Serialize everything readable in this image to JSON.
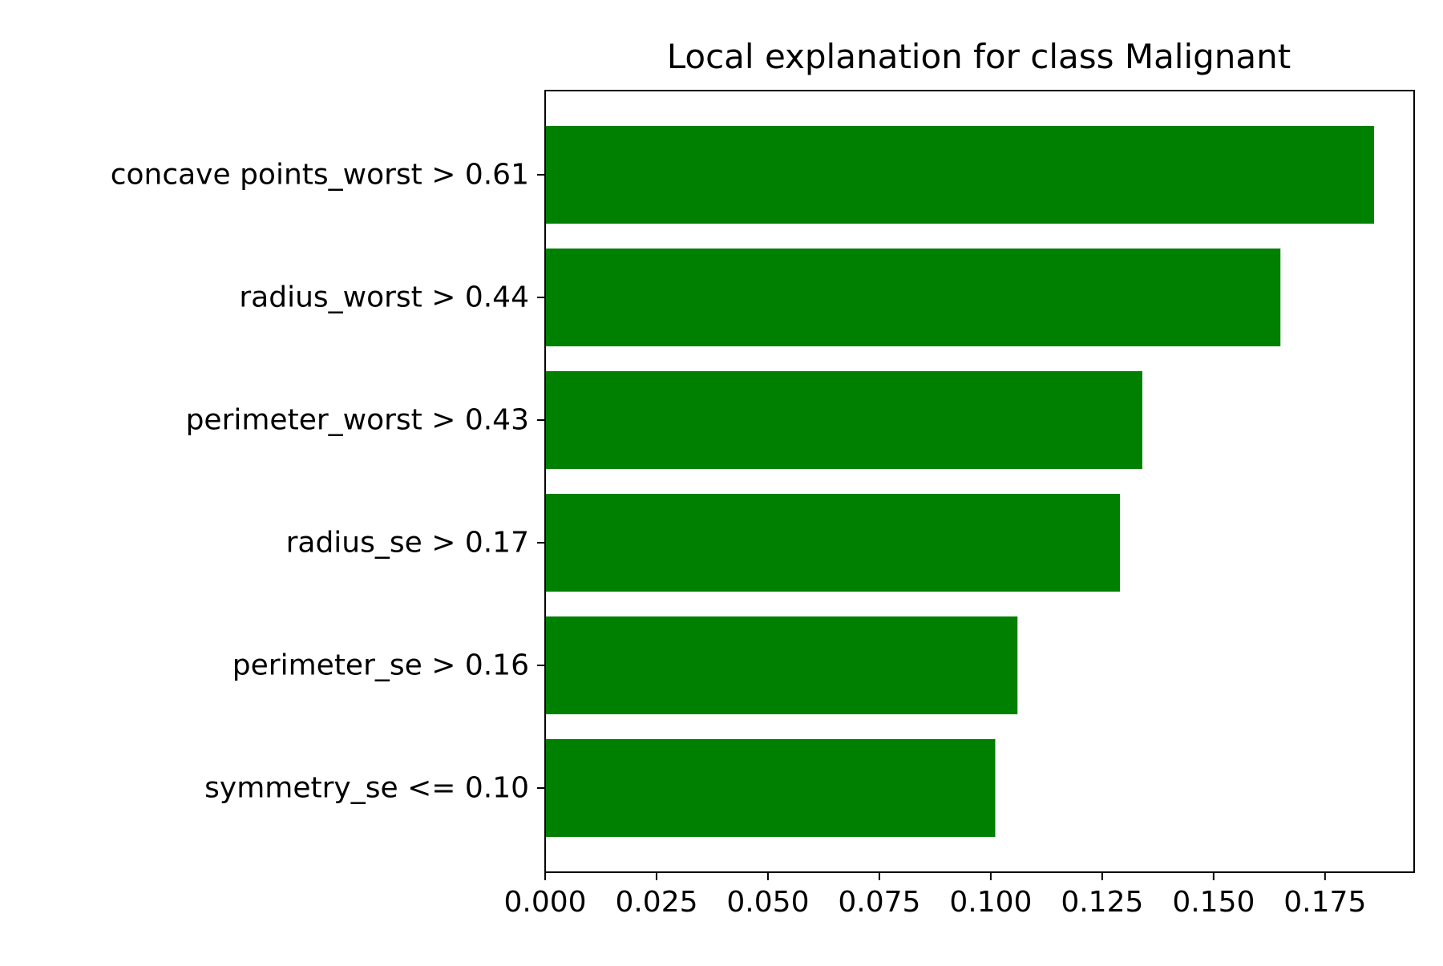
{
  "chart_data": {
    "type": "bar",
    "orientation": "horizontal",
    "title": "Local explanation for class Malignant",
    "xlabel": "",
    "ylabel": "",
    "categories": [
      "concave points_worst > 0.61",
      "radius_worst > 0.44",
      "perimeter_worst > 0.43",
      "radius_se > 0.17",
      "perimeter_se > 0.16",
      "symmetry_se <= 0.10"
    ],
    "values": [
      0.186,
      0.165,
      0.134,
      0.129,
      0.106,
      0.101
    ],
    "xlim": [
      0,
      0.195
    ],
    "xticks": [
      "0.000",
      "0.025",
      "0.050",
      "0.075",
      "0.100",
      "0.125",
      "0.150",
      "0.175"
    ],
    "grid": false,
    "bar_color": "#008000"
  }
}
